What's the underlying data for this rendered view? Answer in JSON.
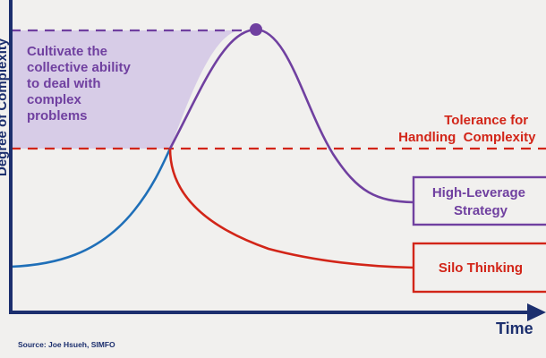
{
  "diagram": {
    "y_axis_label": "Degree of Complexity",
    "x_axis_label": "Time",
    "annotation_lines": [
      "Cultivate the",
      "collective ability",
      "to deal with",
      "complex",
      "problems"
    ],
    "tolerance_lines": [
      "Tolerance for",
      "Handling  Complexity"
    ],
    "boxes": {
      "high_leverage": [
        "High-Leverage",
        "Strategy"
      ],
      "silo": [
        "Silo Thinking"
      ]
    },
    "source": "Source: Joe Hsueh, SIMFO"
  },
  "colors": {
    "background": "#f1f0ee",
    "axis": "#1c2f6e",
    "purple": "#7040a0",
    "purple_fill": "#d4c8e6",
    "red": "#d22518",
    "blue": "#1f6fb8"
  }
}
